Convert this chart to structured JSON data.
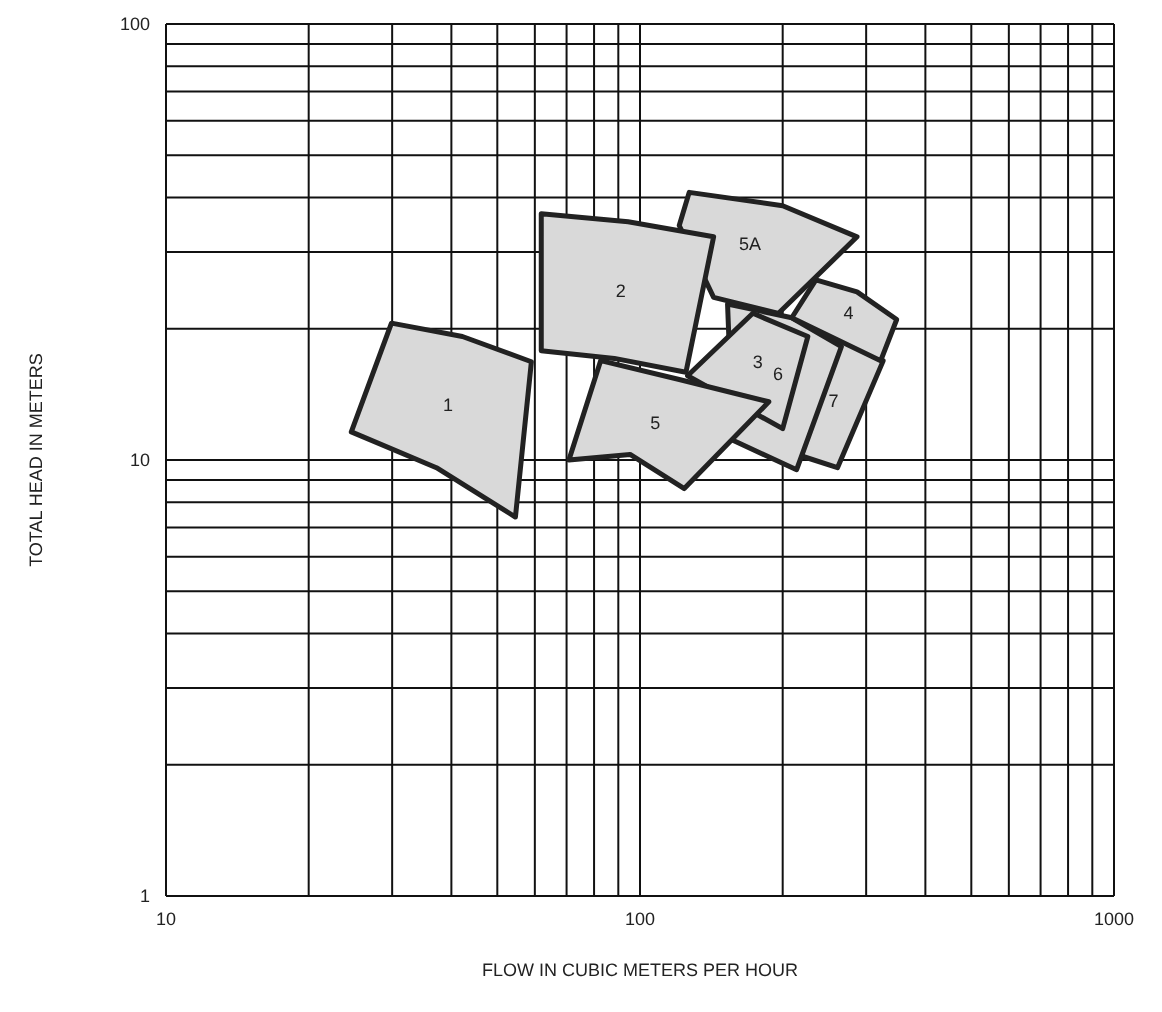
{
  "chart_data": {
    "type": "area",
    "xlabel": "FLOW IN CUBIC METERS PER HOUR",
    "ylabel": "TOTAL HEAD IN METERS",
    "log": "xy",
    "grid": true,
    "marker": "none",
    "xlim": [
      10,
      1000
    ],
    "ylim": [
      1,
      100
    ],
    "xticks": [
      10,
      {
        "value": 20,
        "label": null
      },
      {
        "value": 30,
        "label": null
      },
      {
        "value": 40,
        "label": null
      },
      {
        "value": 50,
        "label": null
      },
      {
        "value": 60,
        "label": null
      },
      {
        "value": 70,
        "label": null
      },
      {
        "value": 80,
        "label": null
      },
      {
        "value": 90,
        "label": null
      },
      100,
      {
        "value": 200,
        "label": null
      },
      {
        "value": 300,
        "label": null
      },
      {
        "value": 400,
        "label": null
      },
      {
        "value": 500,
        "label": null
      },
      {
        "value": 600,
        "label": null
      },
      {
        "value": 700,
        "label": null
      },
      {
        "value": 800,
        "label": null
      },
      {
        "value": 900,
        "label": null
      },
      1000
    ],
    "yticks": [
      1,
      {
        "value": 2,
        "label": null
      },
      {
        "value": 3,
        "label": null
      },
      {
        "value": 4,
        "label": null
      },
      {
        "value": 5,
        "label": null
      },
      {
        "value": 6,
        "label": null
      },
      {
        "value": 7,
        "label": null
      },
      {
        "value": 8,
        "label": null
      },
      {
        "value": 9,
        "label": null
      },
      10,
      {
        "value": 20,
        "label": null
      },
      {
        "value": 30,
        "label": null
      },
      {
        "value": 40,
        "label": null
      },
      {
        "value": 50,
        "label": null
      },
      {
        "value": 60,
        "label": null
      },
      {
        "value": 70,
        "label": null
      },
      {
        "value": 80,
        "label": null
      },
      {
        "value": 90,
        "label": null
      },
      100
    ],
    "series": [
      {
        "name": "7",
        "color": "#d9d9d9",
        "x": [
          230,
          326,
          261,
          220
        ],
        "values": [
          20.5,
          16.9,
          9.6,
          10.2
        ]
      },
      {
        "name": "6",
        "color": "#d9d9d9",
        "x": [
          153,
          209,
          266,
          214,
          157
        ],
        "values": [
          22.8,
          21.2,
          18.2,
          9.5,
          11.1
        ]
      },
      {
        "name": "3",
        "color": "#d9d9d9",
        "x": [
          173,
          226,
          200,
          126
        ],
        "values": [
          21.7,
          19.2,
          11.8,
          15.6
        ]
      },
      {
        "name": "4",
        "color": "#d9d9d9",
        "x": [
          235,
          287,
          348,
          322,
          209
        ],
        "values": [
          25.9,
          24.3,
          21.0,
          16.9,
          21.2
        ]
      },
      {
        "name": "5A",
        "color": "#d9d9d9",
        "x": [
          127,
          200,
          287,
          196,
          143,
          121
        ],
        "values": [
          41.1,
          38.3,
          32.5,
          21.7,
          23.6,
          34.5
        ]
      },
      {
        "name": "2",
        "color": "#d9d9d9",
        "x": [
          61.9,
          94.4,
          143,
          125,
          88.3,
          61.9
        ],
        "values": [
          36.7,
          35.2,
          32.5,
          15.9,
          17.1,
          17.8
        ]
      },
      {
        "name": "5",
        "color": "#d9d9d9",
        "x": [
          82.6,
          121,
          187,
          124,
          95.3,
          70.8
        ],
        "values": [
          16.9,
          15.3,
          13.6,
          8.6,
          10.3,
          10
        ]
      },
      {
        "name": "1",
        "color": "#d9d9d9",
        "x": [
          29.9,
          42.2,
          59.0,
          54.6,
          37.2,
          24.6
        ],
        "values": [
          20.6,
          19.2,
          16.8,
          7.4,
          9.6,
          11.6
        ]
      }
    ]
  }
}
